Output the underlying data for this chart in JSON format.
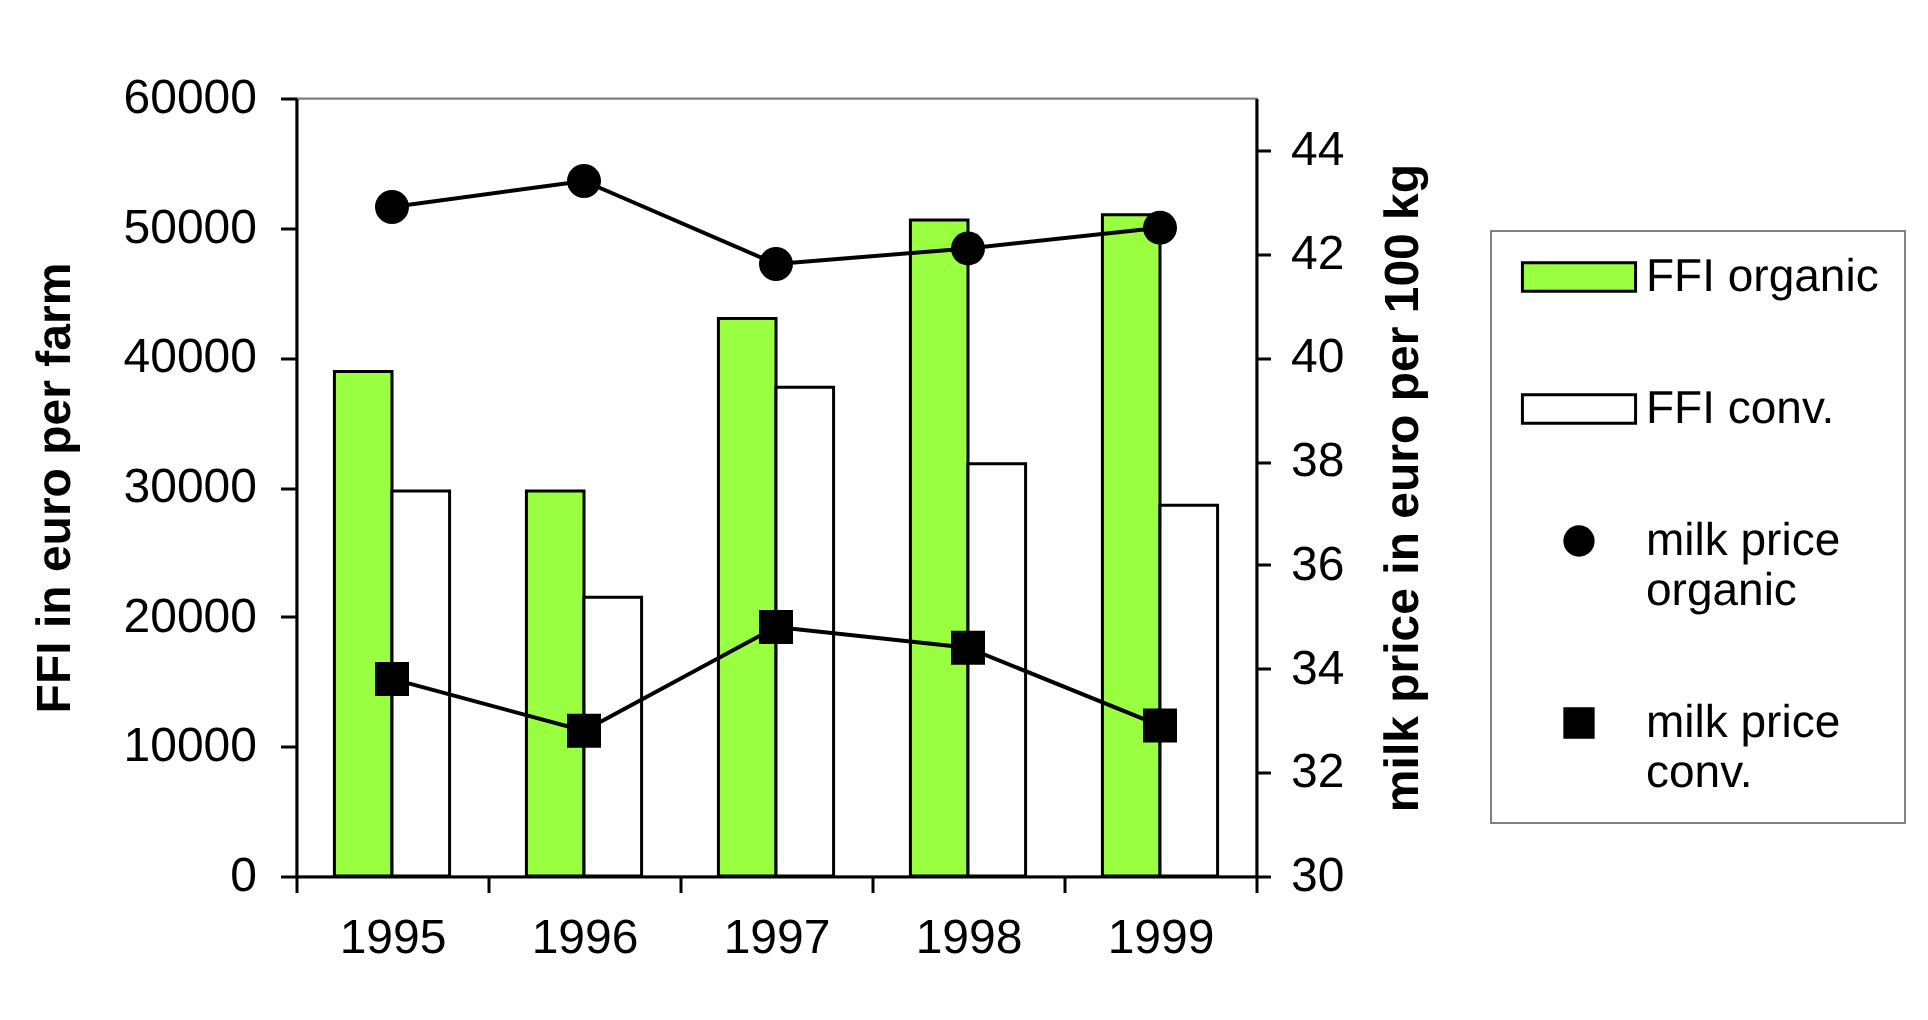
{
  "chart_data": {
    "type": "bar",
    "categories": [
      "1995",
      "1996",
      "1997",
      "1998",
      "1999"
    ],
    "ylabel": "FFI in euro per farm",
    "y2label": "milk price in euro per 100 kg",
    "ylim": [
      0,
      60000
    ],
    "yticks": [
      0,
      10000,
      20000,
      30000,
      40000,
      50000,
      60000
    ],
    "y2lim": [
      30,
      45
    ],
    "y2ticks": [
      30,
      32,
      34,
      36,
      38,
      40,
      42,
      44
    ],
    "legend": "right",
    "series": [
      {
        "name": "FFI organic",
        "color": "#99ff40",
        "values": [
          38900,
          29700,
          43000,
          50600,
          51000
        ]
      },
      {
        "name": "FFI conv.",
        "color": "#ffffff",
        "values": [
          29700,
          21500,
          37700,
          31800,
          28600
        ]
      },
      {
        "name": "milk price organic",
        "type": "line",
        "axis": "y2",
        "marker": "circle",
        "color": "#000000",
        "values": [
          42.9,
          43.4,
          41.8,
          42.1,
          42.5
        ]
      },
      {
        "name": "milk price conv.",
        "type": "line",
        "axis": "y2",
        "marker": "square",
        "color": "#000000",
        "values": [
          33.8,
          32.8,
          34.8,
          34.4,
          32.9
        ]
      }
    ]
  }
}
